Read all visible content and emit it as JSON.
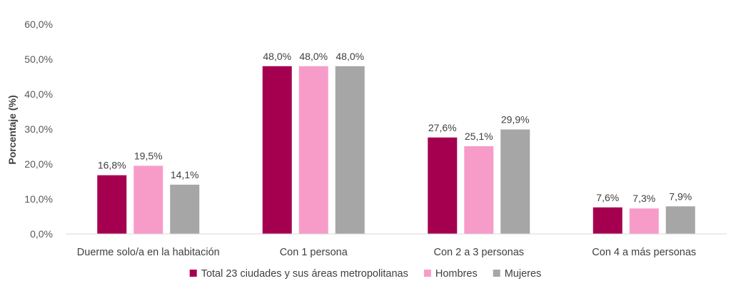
{
  "chart_data": {
    "type": "bar",
    "title": "",
    "xlabel": "",
    "ylabel": "Porcentaje (%)",
    "ylim": [
      0,
      60
    ],
    "ytick_step": 10,
    "ytick_labels": [
      "0,0%",
      "10,0%",
      "20,0%",
      "30,0%",
      "40,0%",
      "50,0%",
      "60,0%"
    ],
    "grid": false,
    "legend_position": "bottom",
    "categories": [
      "Duerme solo/a en la habitación",
      "Con 1 persona",
      "Con 2 a 3 personas",
      "Con 4 a más personas"
    ],
    "series": [
      {
        "name": "Total 23 ciudades y sus áreas metropolitanas",
        "color": "#A50050",
        "values": [
          16.8,
          48.0,
          27.6,
          7.6
        ],
        "labels": [
          "16,8%",
          "48,0%",
          "27,6%",
          "7,6%"
        ]
      },
      {
        "name": "Hombres",
        "color": "#F79CC8",
        "values": [
          19.5,
          48.0,
          25.1,
          7.3
        ],
        "labels": [
          "19,5%",
          "48,0%",
          "25,1%",
          "7,3%"
        ]
      },
      {
        "name": "Mujeres",
        "color": "#A6A6A6",
        "values": [
          14.1,
          48.0,
          29.9,
          7.9
        ],
        "labels": [
          "14,1%",
          "48,0%",
          "29,9%",
          "7,9%"
        ]
      }
    ]
  }
}
